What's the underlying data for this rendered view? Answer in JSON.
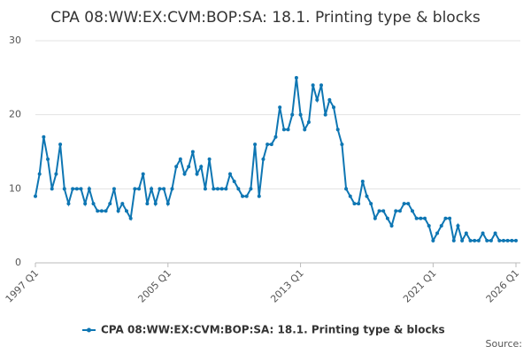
{
  "chart_data": {
    "type": "line",
    "title": "CPA 08:WW:EX:CVM:BOP:SA: 18.1. Printing type & blocks",
    "source": "Source:",
    "categories": [
      "1997 Q1",
      null,
      null,
      null,
      null,
      null,
      null,
      null,
      null,
      null,
      null,
      null,
      null,
      null,
      null,
      null,
      null,
      null,
      null,
      null,
      null,
      null,
      null,
      null,
      null,
      null,
      null,
      null,
      null,
      null,
      null,
      null,
      "2005 Q1",
      null,
      null,
      null,
      null,
      null,
      null,
      null,
      null,
      null,
      null,
      null,
      null,
      null,
      null,
      null,
      null,
      null,
      null,
      null,
      null,
      null,
      null,
      null,
      null,
      null,
      null,
      null,
      null,
      null,
      null,
      null,
      "2013 Q1",
      null,
      null,
      null,
      null,
      null,
      null,
      null,
      null,
      null,
      null,
      null,
      null,
      null,
      null,
      null,
      null,
      null,
      null,
      null,
      null,
      null,
      null,
      null,
      null,
      null,
      null,
      null,
      null,
      null,
      null,
      null,
      "2021 Q1",
      null,
      null,
      null,
      null,
      null,
      null,
      null,
      null,
      null,
      null,
      null,
      null,
      null,
      null,
      null,
      null,
      null,
      null,
      null,
      "2026 Q1"
    ],
    "series": [
      {
        "name": "CPA 08:WW:EX:CVM:BOP:SA: 18.1. Printing type & blocks",
        "color": "#0e76b3",
        "values": [
          9,
          12,
          17,
          14,
          10,
          12,
          16,
          10,
          8,
          10,
          10,
          10,
          8,
          10,
          8,
          7,
          7,
          7,
          8,
          10,
          7,
          8,
          7,
          6,
          10,
          10,
          12,
          8,
          10,
          8,
          10,
          10,
          8,
          10,
          13,
          14,
          12,
          13,
          15,
          12,
          13,
          10,
          14,
          10,
          10,
          10,
          10,
          12,
          11,
          10,
          9,
          9,
          10,
          16,
          9,
          14,
          16,
          16,
          17,
          21,
          18,
          18,
          20,
          25,
          20,
          18,
          19,
          24,
          22,
          24,
          20,
          22,
          21,
          18,
          16,
          10,
          9,
          8,
          8,
          11,
          9,
          8,
          6,
          7,
          7,
          6,
          5,
          7,
          7,
          8,
          8,
          7,
          6,
          6,
          6,
          5,
          3,
          4,
          5,
          6,
          6,
          3,
          5,
          3,
          4,
          3,
          3,
          3,
          4,
          3,
          3,
          4,
          3,
          3,
          3,
          3,
          3
        ]
      }
    ],
    "ylim": [
      0,
      30
    ],
    "yticks": [
      0,
      10,
      20,
      30
    ],
    "grid": true,
    "legend": "bottom"
  }
}
